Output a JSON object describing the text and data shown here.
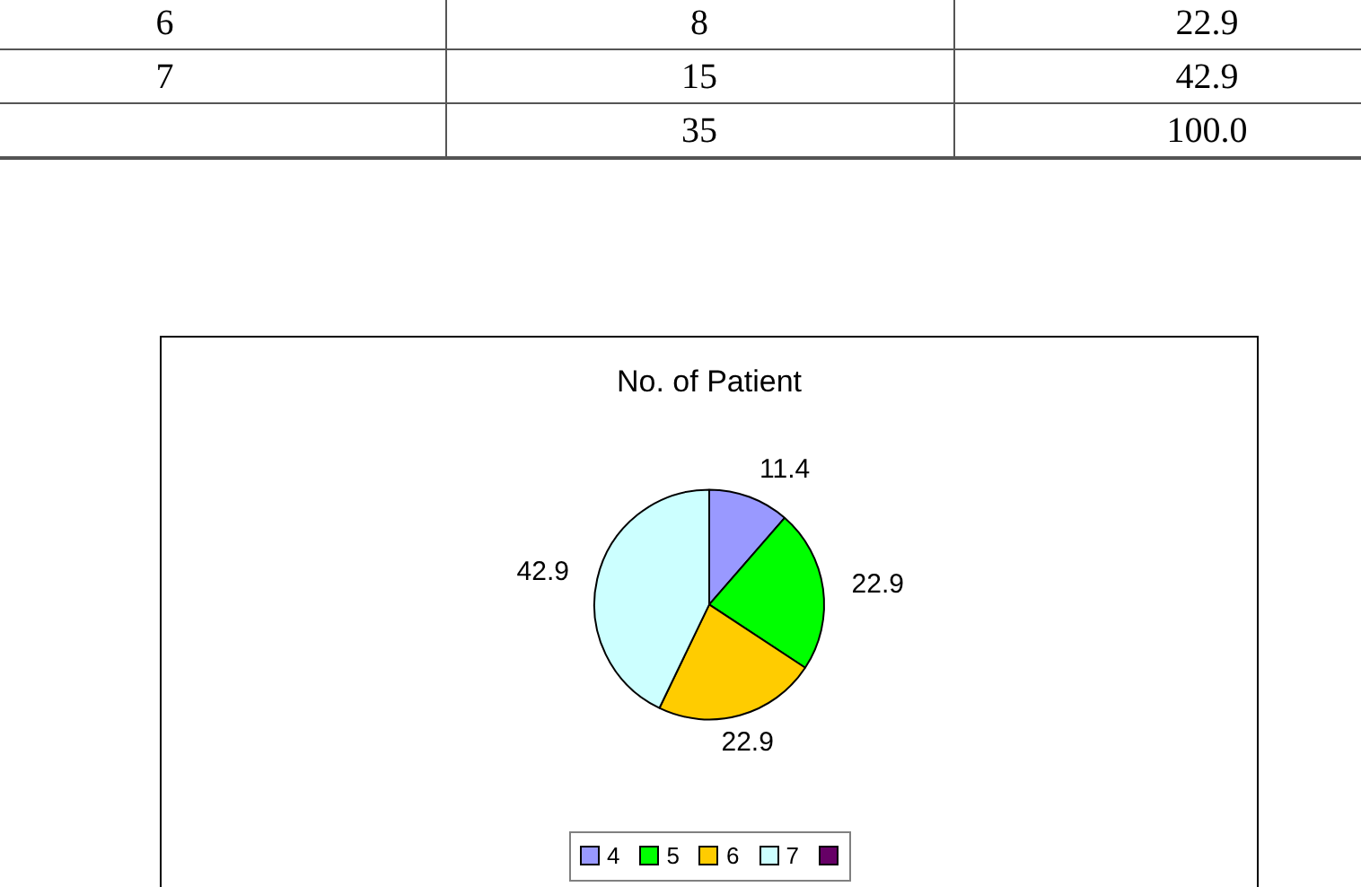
{
  "chart_data": [
    {
      "type": "other",
      "annotations": [
        "6",
        "8",
        "22.9",
        "7",
        "15",
        "42.9",
        "35",
        "100.0"
      ]
    },
    {
      "type": "pie",
      "title": "No. of Patient",
      "categories": [
        "4",
        "5",
        "6",
        "7",
        null
      ],
      "values": [
        11.4,
        22.9,
        22.9,
        42.9,
        null
      ],
      "colors": [
        "#9999ff",
        "#00ff00",
        "#ffcc00",
        "#ccffff",
        "#660066"
      ],
      "data_labels": true,
      "legend": "bottom"
    }
  ]
}
